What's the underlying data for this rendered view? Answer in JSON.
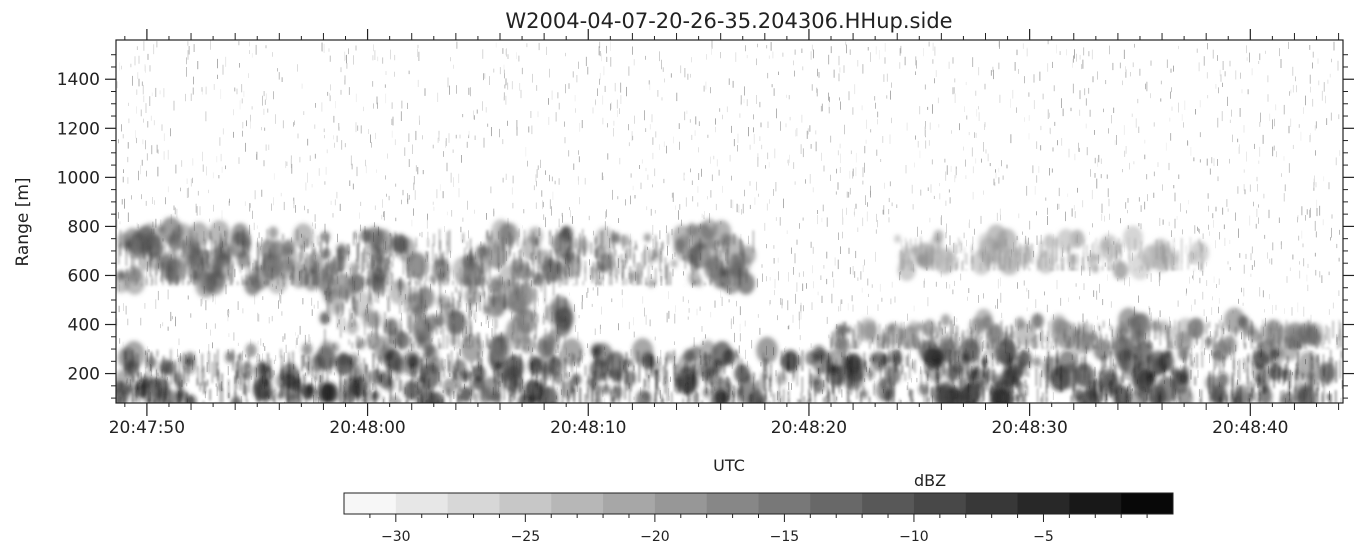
{
  "chart_data": {
    "type": "heatmap",
    "title": "W2004-04-07-20-26-35.204306.HHup.side",
    "xlabel": "UTC",
    "ylabel": "Range [m]",
    "x_ticks": [
      "20:47:50",
      "20:48:00",
      "20:48:10",
      "20:48:20",
      "20:48:30",
      "20:48:40"
    ],
    "x_tick_seconds": [
      50,
      60,
      70,
      80,
      90,
      100
    ],
    "xlim_seconds": [
      48.6,
      104.2
    ],
    "y_ticks": [
      200,
      400,
      600,
      800,
      1000,
      1200,
      1400
    ],
    "ylim": [
      80,
      1560
    ],
    "colorbar": {
      "label": "dBZ",
      "ticks": [
        -30,
        -25,
        -20,
        -15,
        -10,
        -5
      ],
      "range": [
        -32,
        0
      ],
      "levels": 16,
      "colormap": "white-to-black"
    },
    "features": [
      {
        "name": "surface clutter layer",
        "x_range": [
          48.6,
          104.2
        ],
        "range_m": [
          80,
          300
        ],
        "dBZ_approx": -6
      },
      {
        "name": "cloud layer",
        "x_range": [
          48.6,
          77.5
        ],
        "range_m": [
          560,
          790
        ],
        "dBZ_approx": -11
      },
      {
        "name": "precipitation shaft",
        "x_range": [
          58,
          69
        ],
        "range_m": [
          300,
          600
        ],
        "dBZ_approx": -12
      },
      {
        "name": "lower broken layer",
        "x_range": [
          81,
          104.2
        ],
        "range_m": [
          300,
          420
        ],
        "dBZ_approx": -14
      },
      {
        "name": "faint layer",
        "x_range": [
          84,
          98
        ],
        "range_m": [
          620,
          760
        ],
        "dBZ_approx": -20
      }
    ],
    "grid": false
  }
}
